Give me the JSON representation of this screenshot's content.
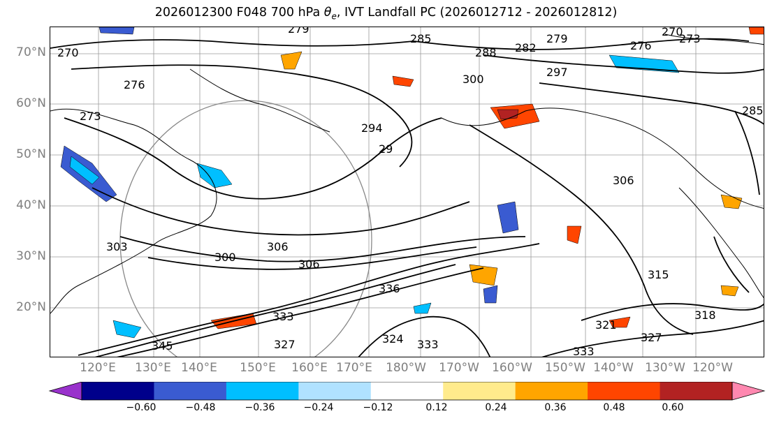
{
  "title": {
    "prefix": "2026012300 F048 700 hPa ",
    "theta": "θ",
    "theta_sub": "e",
    "suffix": ", IVT Landfall PC (2026012712 - 2026012812)"
  },
  "lat_labels": [
    "70°N",
    "60°N",
    "50°N",
    "40°N",
    "30°N",
    "20°N"
  ],
  "lon_labels": [
    "120°E",
    "130°E",
    "140°E",
    "150°E",
    "160°E",
    "170°E",
    "180°W",
    "170°W",
    "160°W",
    "150°W",
    "140°W",
    "130°W",
    "120°W"
  ],
  "colorbar": {
    "colors": [
      "#9932cc",
      "#00008b",
      "#3a5bd1",
      "#00bfff",
      "#b0e2ff",
      "#ffffff",
      "#ffeb8c",
      "#ffa500",
      "#ff4500",
      "#b22222",
      "#ff88b0"
    ],
    "ticks": [
      "−0.60",
      "−0.48",
      "−0.36",
      "−0.24",
      "−0.12",
      "0.12",
      "0.24",
      "0.36",
      "0.48",
      "0.60"
    ]
  },
  "contour_labels": [
    {
      "text": "279"
    },
    {
      "text": "285"
    },
    {
      "text": "279"
    },
    {
      "text": "270"
    },
    {
      "text": "273"
    },
    {
      "text": "288"
    },
    {
      "text": "282"
    },
    {
      "text": "276"
    },
    {
      "text": "297"
    },
    {
      "text": "300"
    },
    {
      "text": "276"
    },
    {
      "text": "273"
    },
    {
      "text": "294"
    },
    {
      "text": "29"
    },
    {
      "text": "306"
    },
    {
      "text": "303"
    },
    {
      "text": "300"
    },
    {
      "text": "306"
    },
    {
      "text": "306"
    },
    {
      "text": "315"
    },
    {
      "text": "318"
    },
    {
      "text": "327"
    },
    {
      "text": "333"
    },
    {
      "text": "324"
    },
    {
      "text": "333"
    },
    {
      "text": "336"
    },
    {
      "text": "327"
    },
    {
      "text": "333"
    },
    {
      "text": "345"
    },
    {
      "text": "321"
    },
    {
      "text": "270"
    },
    {
      "text": "285"
    }
  ]
}
